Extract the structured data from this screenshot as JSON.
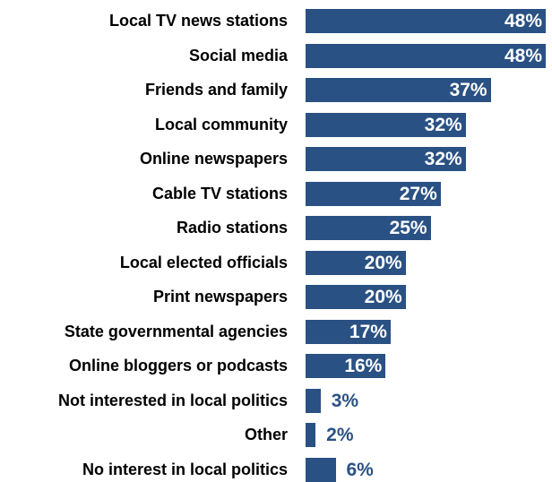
{
  "chart_data": {
    "type": "bar",
    "orientation": "horizontal",
    "categories": [
      "Local TV news stations",
      "Social media",
      "Friends and family",
      "Local community",
      "Online newspapers",
      "Cable TV stations",
      "Radio stations",
      "Local elected officials",
      "Print newspapers",
      "State governmental agencies",
      "Online bloggers or podcasts",
      "Not interested in local politics",
      "Other",
      "No interest in local politics"
    ],
    "values": [
      48,
      48,
      37,
      32,
      32,
      27,
      25,
      20,
      20,
      17,
      16,
      3,
      2,
      6
    ],
    "value_labels": [
      "48%",
      "48%",
      "37%",
      "32%",
      "32%",
      "27%",
      "25%",
      "20%",
      "20%",
      "17%",
      "16%",
      "3%",
      "2%",
      "6%"
    ],
    "title": "",
    "xlabel": "",
    "ylabel": "",
    "xlim": [
      0,
      48
    ],
    "grid": false,
    "legend": "none",
    "colors": {
      "bar": "#2a5183",
      "label_inside": "#ffffff",
      "label_outside": "#2a5183",
      "category_text": "#000000"
    }
  }
}
